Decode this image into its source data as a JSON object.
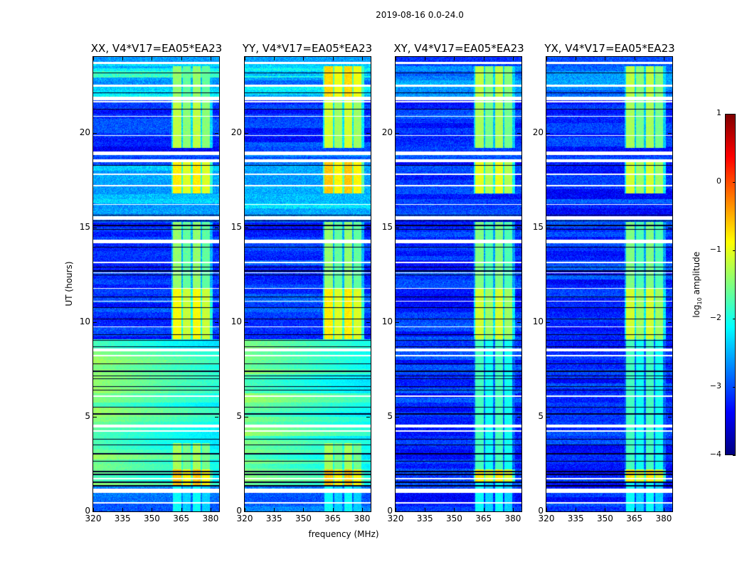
{
  "chart_data": {
    "type": "heatmap",
    "title": "2019-08-16 0.0-24.0",
    "xlabel": "frequency (MHz)",
    "ylabel": "UT (hours)",
    "xlim": [
      320,
      384.4
    ],
    "ylim": [
      0,
      24
    ],
    "xticks": [
      320,
      335,
      350,
      365,
      380
    ],
    "yticks": [
      0,
      5,
      10,
      15,
      20
    ],
    "colorbar": {
      "label_prefix": "log",
      "label_sub": "10",
      "label_suffix": " amplitude",
      "range": [
        -4,
        1
      ],
      "ticks": [
        1,
        0,
        -1,
        -2,
        -3,
        -4
      ],
      "colormap": "jet"
    },
    "rfi_channels_mhz": [
      [
        360.7,
        365
      ],
      [
        366,
        370
      ],
      [
        371,
        374.8
      ],
      [
        375.8,
        379.8
      ]
    ],
    "flagged_ut": [
      [
        23.64,
        23.72
      ],
      [
        22.44,
        22.52
      ],
      [
        21.7,
        21.9
      ],
      [
        21.6,
        21.68
      ],
      [
        20.83,
        20.9
      ],
      [
        19.82,
        19.88
      ],
      [
        18.8,
        19.0
      ],
      [
        18.45,
        18.6
      ],
      [
        17.77,
        17.83
      ],
      [
        17.17,
        17.23
      ],
      [
        16.17,
        16.23
      ],
      [
        15.4,
        15.6
      ],
      [
        14.15,
        14.35
      ],
      [
        13.1,
        13.2
      ],
      [
        12.57,
        12.63
      ],
      [
        11.75,
        11.81
      ],
      [
        11.07,
        11.13
      ],
      [
        9.72,
        9.78
      ],
      [
        8.45,
        8.6
      ],
      [
        8.2,
        8.28
      ],
      [
        6.05,
        6.11
      ],
      [
        4.45,
        4.6
      ],
      [
        4.2,
        4.28
      ],
      [
        1.7,
        1.76
      ],
      [
        0.98,
        1.2
      ],
      [
        0.42,
        0.48
      ]
    ],
    "dropout_ut": [
      23.15,
      22.1,
      21.25,
      18.27,
      15.65,
      15.35,
      15.1,
      14.9,
      13.95,
      12.9,
      12.7,
      12.5,
      11.33,
      10.77,
      10.17,
      9.34,
      9.04,
      8.7,
      7.8,
      7.4,
      7.15,
      7.0,
      6.6,
      6.4,
      5.5,
      5.14,
      3.8,
      3.5,
      3.04,
      2.66,
      2.1,
      1.95,
      1.54,
      1.35
    ],
    "panels": [
      {
        "title": "XX, V4*V17=EA05*EA23",
        "background_log_amp": [
          [
            0,
            1.3,
            -2.8
          ],
          [
            1.3,
            9.1,
            -1.55
          ],
          [
            9.1,
            15.6,
            -3.1
          ],
          [
            15.6,
            18.3,
            -2.5
          ],
          [
            18.3,
            19.0,
            -2.9
          ],
          [
            19.0,
            21.9,
            -3.2
          ],
          [
            21.9,
            22.5,
            -2.2
          ],
          [
            22.5,
            22.9,
            -2.8
          ],
          [
            22.9,
            23.4,
            -2.0
          ],
          [
            23.4,
            24,
            -2.4
          ]
        ],
        "rfi_log_amp": [
          [
            0,
            1.3,
            -2.2
          ],
          [
            1.3,
            2.2,
            -0.7
          ],
          [
            2.2,
            3.6,
            -1.4
          ],
          [
            9.1,
            11.8,
            -1.0
          ],
          [
            11.8,
            15.3,
            -1.5
          ],
          [
            16.8,
            18.6,
            -0.9
          ],
          [
            19.2,
            21.9,
            -1.3
          ],
          [
            21.9,
            23.5,
            -1.5
          ]
        ]
      },
      {
        "title": "YY, V4*V17=EA05*EA23",
        "background_log_amp": [
          [
            0,
            1.3,
            -2.8
          ],
          [
            1.3,
            9.1,
            -1.55
          ],
          [
            9.1,
            15.6,
            -3.1
          ],
          [
            15.6,
            18.3,
            -2.4
          ],
          [
            18.3,
            19.0,
            -2.9
          ],
          [
            19.0,
            21.9,
            -3.1
          ],
          [
            21.9,
            22.5,
            -2.3
          ],
          [
            22.5,
            22.9,
            -2.8
          ],
          [
            22.9,
            23.4,
            -2.2
          ],
          [
            23.4,
            24,
            -2.4
          ]
        ],
        "rfi_log_amp": [
          [
            0,
            1.3,
            -2.2
          ],
          [
            1.3,
            2.2,
            -0.7
          ],
          [
            2.2,
            3.6,
            -1.4
          ],
          [
            9.1,
            11.8,
            -0.9
          ],
          [
            11.8,
            15.3,
            -1.5
          ],
          [
            16.8,
            18.6,
            -0.7
          ],
          [
            19.2,
            21.9,
            -1.2
          ],
          [
            21.9,
            23.5,
            -0.8
          ]
        ]
      },
      {
        "title": "XY, V4*V17=EA05*EA23",
        "background_log_amp": [
          [
            0,
            21.9,
            -3.15
          ],
          [
            21.9,
            23.5,
            -2.7
          ],
          [
            23.5,
            24,
            -3.0
          ]
        ],
        "rfi_log_amp": [
          [
            0,
            1.5,
            -2.2
          ],
          [
            1.5,
            2.2,
            -0.9
          ],
          [
            2.2,
            9.1,
            -1.9
          ],
          [
            9.1,
            11.8,
            -1.2
          ],
          [
            11.8,
            15.3,
            -1.6
          ],
          [
            16.8,
            18.6,
            -1.1
          ],
          [
            19.2,
            21.9,
            -1.4
          ],
          [
            21.9,
            23.5,
            -1.3
          ]
        ]
      },
      {
        "title": "YX, V4*V17=EA05*EA23",
        "background_log_amp": [
          [
            0,
            21.9,
            -3.15
          ],
          [
            21.9,
            23.5,
            -2.7
          ],
          [
            23.5,
            24,
            -3.0
          ]
        ],
        "rfi_log_amp": [
          [
            0,
            1.5,
            -2.2
          ],
          [
            1.5,
            2.2,
            -0.9
          ],
          [
            2.2,
            9.1,
            -1.9
          ],
          [
            9.1,
            11.8,
            -1.2
          ],
          [
            11.8,
            15.3,
            -1.6
          ],
          [
            16.8,
            18.6,
            -1.2
          ],
          [
            19.2,
            21.9,
            -1.4
          ],
          [
            21.9,
            23.5,
            -1.3
          ]
        ]
      }
    ]
  }
}
